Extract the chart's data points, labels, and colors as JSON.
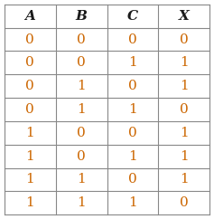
{
  "headers": [
    "A",
    "B",
    "C",
    "X"
  ],
  "rows": [
    [
      0,
      0,
      0,
      0
    ],
    [
      0,
      0,
      1,
      1
    ],
    [
      0,
      1,
      0,
      1
    ],
    [
      0,
      1,
      1,
      0
    ],
    [
      1,
      0,
      0,
      1
    ],
    [
      1,
      0,
      1,
      1
    ],
    [
      1,
      1,
      0,
      1
    ],
    [
      1,
      1,
      1,
      0
    ]
  ],
  "header_color": "#1a1a1a",
  "data_color": "#cc6600",
  "grid_color": "#888888",
  "bg_color": "#ffffff",
  "header_fontsize": 11,
  "data_fontsize": 11,
  "header_fontstyle": "bold",
  "fig_width": 2.37,
  "fig_height": 2.42,
  "dpi": 100
}
